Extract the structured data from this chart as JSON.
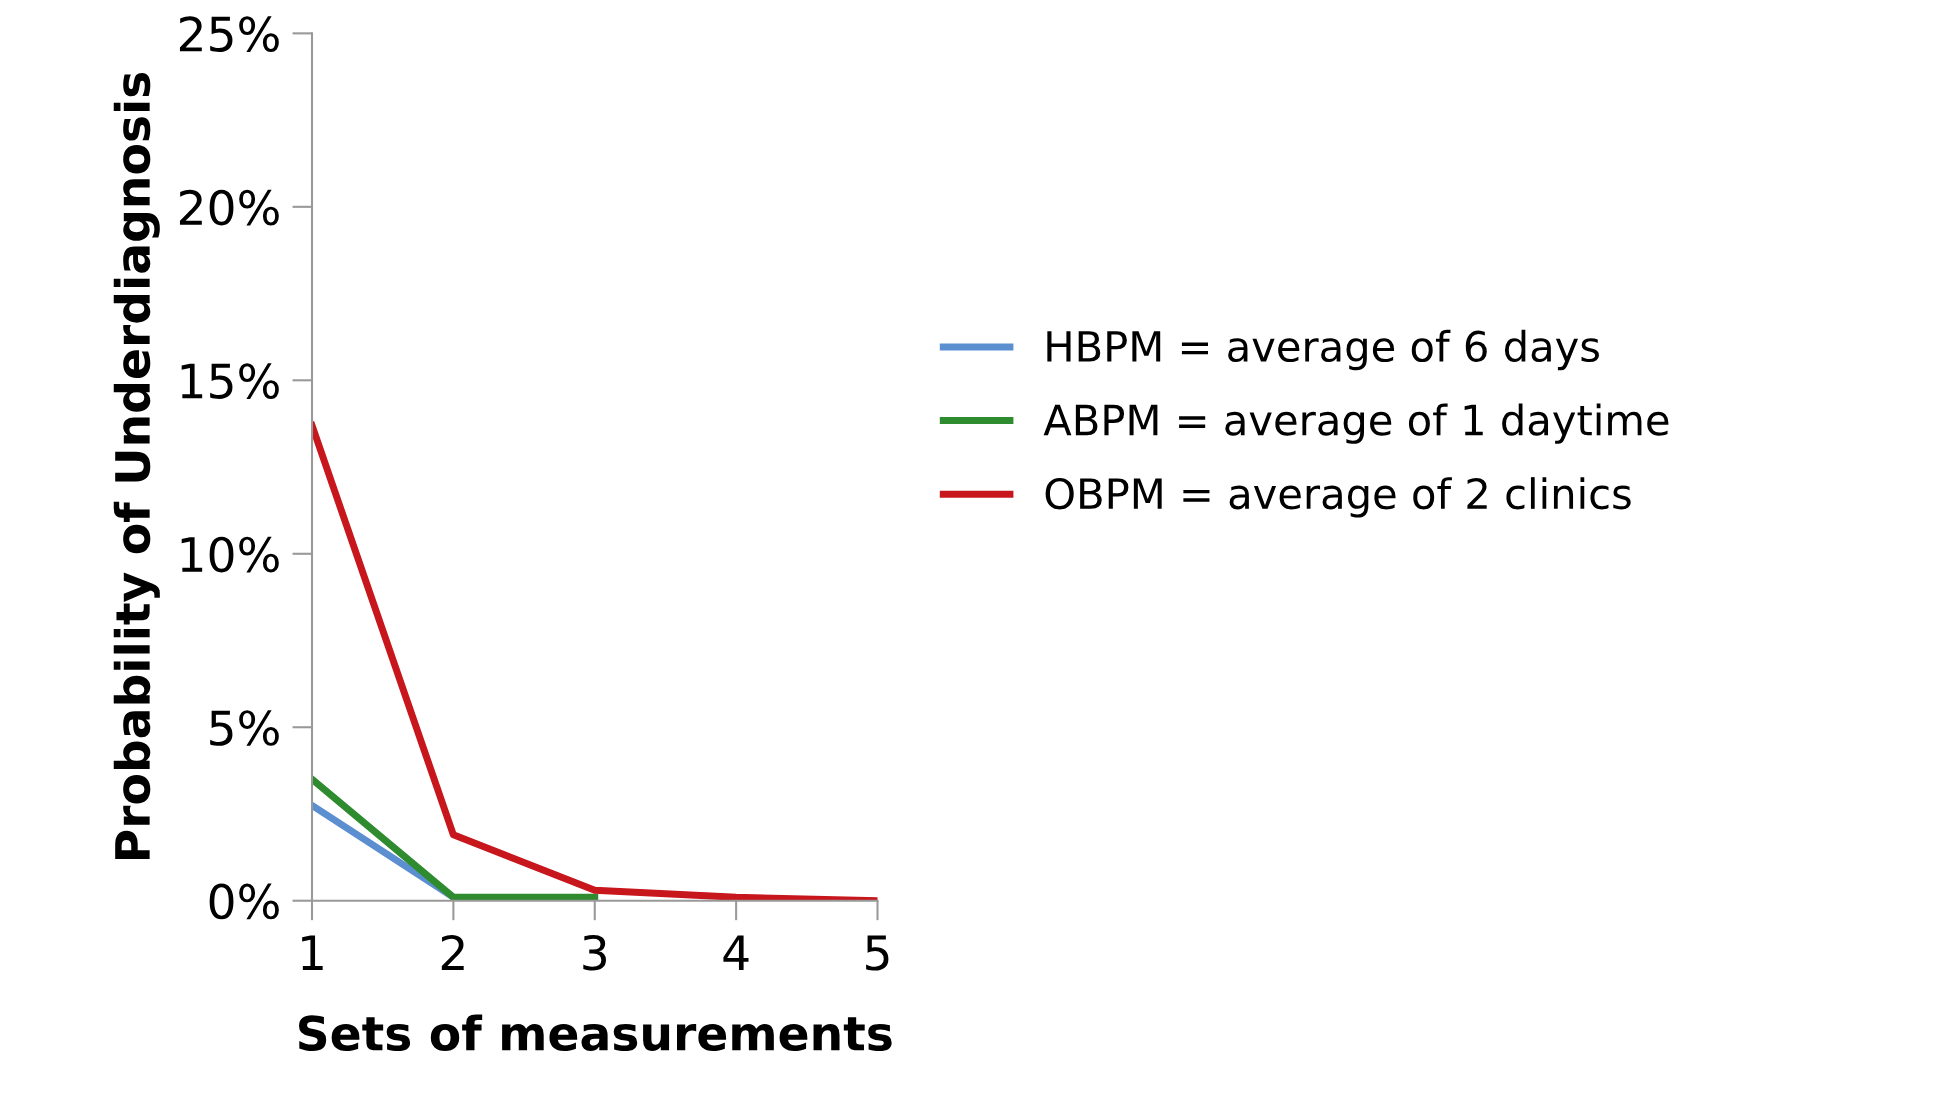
{
  "chart_data": {
    "type": "line",
    "xlabel": "Sets of measurements",
    "ylabel": "Probability of Underdiagnosis",
    "x": [
      1,
      2,
      3,
      4,
      5
    ],
    "series": [
      {
        "name": "HBPM = average of 6 days",
        "color": "#5b8fd0",
        "values": [
          2.75,
          0.1,
          null,
          null,
          null
        ]
      },
      {
        "name": "ABPM = average of 1 daytime",
        "color": "#2e8b2e",
        "values": [
          3.5,
          0.1,
          0.1,
          null,
          null
        ]
      },
      {
        "name": "OBPM = average of 2 clinics",
        "color": "#c8161d",
        "values": [
          13.7,
          1.9,
          0.3,
          0.1,
          0
        ]
      }
    ],
    "xlim": [
      1,
      5
    ],
    "xticks": [
      1,
      2,
      3,
      4,
      5
    ],
    "ylim": [
      0,
      25
    ],
    "yticks": [
      {
        "value": 0,
        "label": "0%"
      },
      {
        "value": 5,
        "label": "5%"
      },
      {
        "value": 10,
        "label": "10%"
      },
      {
        "value": 15,
        "label": "15%"
      },
      {
        "value": 20,
        "label": "20%"
      },
      {
        "value": 25,
        "label": "25%"
      }
    ],
    "grid": false,
    "legend": "right",
    "marker": "none",
    "line_style": "solid"
  }
}
